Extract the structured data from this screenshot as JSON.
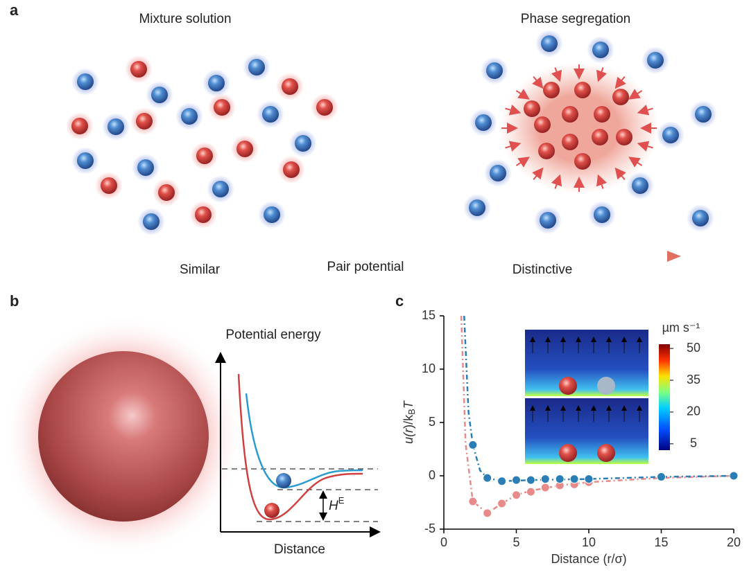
{
  "panels": {
    "a": "a",
    "b": "b",
    "c": "c"
  },
  "panel_a": {
    "left_title": "Mixture solution",
    "right_title": "Phase segregation",
    "arrow_start": "Similar",
    "arrow_middle": "Pair potential",
    "arrow_end": "Distinctive"
  },
  "panel_b": {
    "y_label": "Potential energy",
    "x_label": "Distance",
    "gap_label": {
      "main": "H",
      "sup": "E"
    }
  },
  "chart_data": {
    "type": "line",
    "ylabel_parts": [
      "u(",
      "r",
      ")/k",
      "B",
      "T"
    ],
    "xlabel": "Distance (r/σ)",
    "xlim": [
      0,
      20
    ],
    "xticks": [
      0,
      5,
      10,
      15,
      20
    ],
    "ylim": [
      -5,
      15
    ],
    "yticks": [
      -5,
      0,
      5,
      10,
      15
    ],
    "series": [
      {
        "color": "#e8898a",
        "marker": false,
        "x": [
          1.2,
          1.5,
          2,
          3,
          4,
          5,
          6,
          8,
          10,
          15,
          20
        ],
        "values": [
          15,
          3,
          -2.4,
          -3.5,
          -2.6,
          -1.8,
          -1.4,
          -0.9,
          -0.6,
          -0.2,
          0
        ]
      },
      {
        "color": "#2a7db5",
        "marker": false,
        "x": [
          1.4,
          1.7,
          2,
          2.5,
          3,
          4,
          6,
          10,
          15,
          20
        ],
        "values": [
          15,
          6,
          2.9,
          0.5,
          -0.2,
          -0.5,
          -0.4,
          -0.3,
          -0.1,
          0
        ]
      },
      {
        "color": "#e8898a",
        "marker": true,
        "x": [
          2,
          3,
          4,
          5,
          6,
          7,
          8,
          9,
          10
        ],
        "values": [
          -2.4,
          -3.5,
          -2.6,
          -1.8,
          -1.5,
          -1.1,
          -0.9,
          -0.8,
          -0.6
        ]
      },
      {
        "color": "#2a7db5",
        "marker": true,
        "x": [
          2,
          3,
          4,
          5,
          6,
          7,
          8,
          9,
          10,
          15,
          20
        ],
        "values": [
          2.9,
          -0.2,
          -0.5,
          -0.4,
          -0.4,
          -0.3,
          -0.3,
          -0.3,
          -0.3,
          -0.1,
          0
        ]
      }
    ],
    "inset_colorbar": {
      "label": "µm s⁻¹",
      "lim": [
        2,
        52
      ],
      "ticks": [
        50,
        35,
        20,
        5
      ]
    }
  }
}
